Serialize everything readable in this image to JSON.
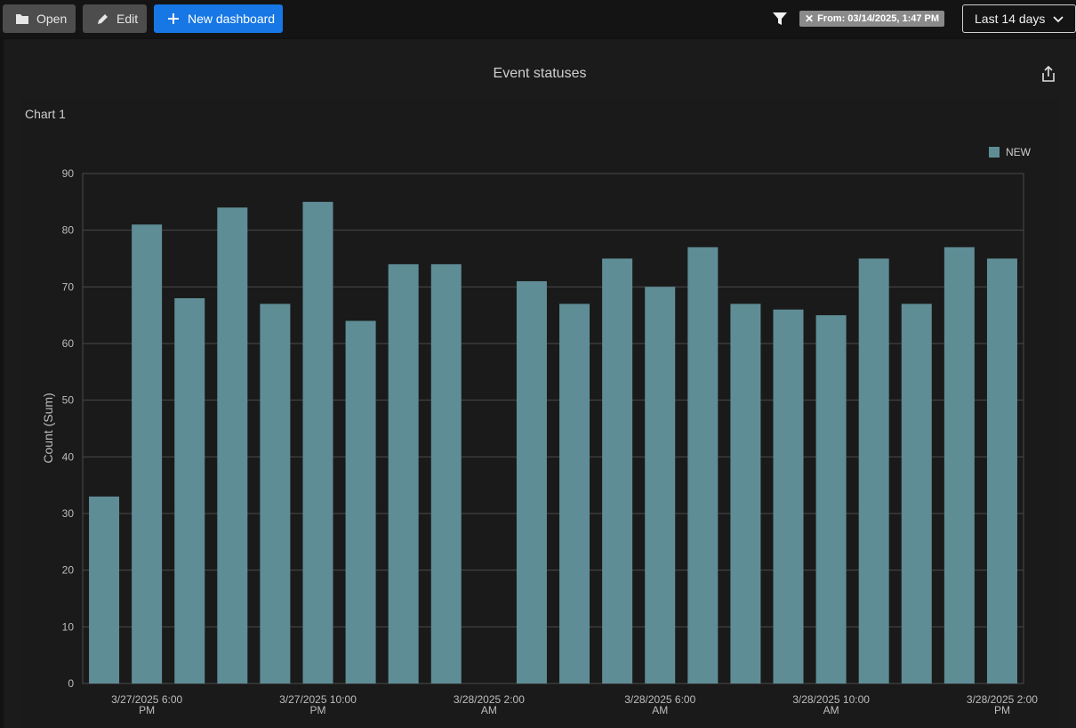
{
  "toolbar": {
    "open_label": "Open",
    "edit_label": "Edit",
    "new_dashboard_label": "New dashboard",
    "filter_chip": "From: 03/14/2025, 1:47 PM",
    "range_label": "Last 14 days",
    "accent_color": "#1677e5"
  },
  "panel": {
    "title": "Event statuses"
  },
  "chart_data": {
    "type": "bar",
    "chart_title": "Chart 1",
    "ylabel": "Count (Sum)",
    "xlabel": "",
    "ylim": [
      0,
      90
    ],
    "yticks": [
      0,
      10,
      20,
      30,
      40,
      50,
      60,
      70,
      80,
      90
    ],
    "grid": true,
    "legend_position": "top-right",
    "bar_color": "#5f8d96",
    "series": [
      {
        "name": "NEW",
        "values": [
          33,
          81,
          68,
          84,
          67,
          85,
          64,
          74,
          74,
          null,
          71,
          67,
          75,
          70,
          77,
          67,
          66,
          65,
          75,
          67,
          77,
          75
        ]
      }
    ],
    "x_tick_labels": [
      {
        "slot": 1,
        "lines": [
          "3/27/2025 6:00",
          "PM"
        ]
      },
      {
        "slot": 5,
        "lines": [
          "3/27/2025 10:00",
          "PM"
        ]
      },
      {
        "slot": 9,
        "lines": [
          "3/28/2025 2:00",
          "AM"
        ]
      },
      {
        "slot": 13,
        "lines": [
          "3/28/2025 6:00",
          "AM"
        ]
      },
      {
        "slot": 17,
        "lines": [
          "3/28/2025 10:00",
          "AM"
        ]
      },
      {
        "slot": 21,
        "lines": [
          "3/28/2025 2:00",
          "PM"
        ]
      }
    ]
  }
}
